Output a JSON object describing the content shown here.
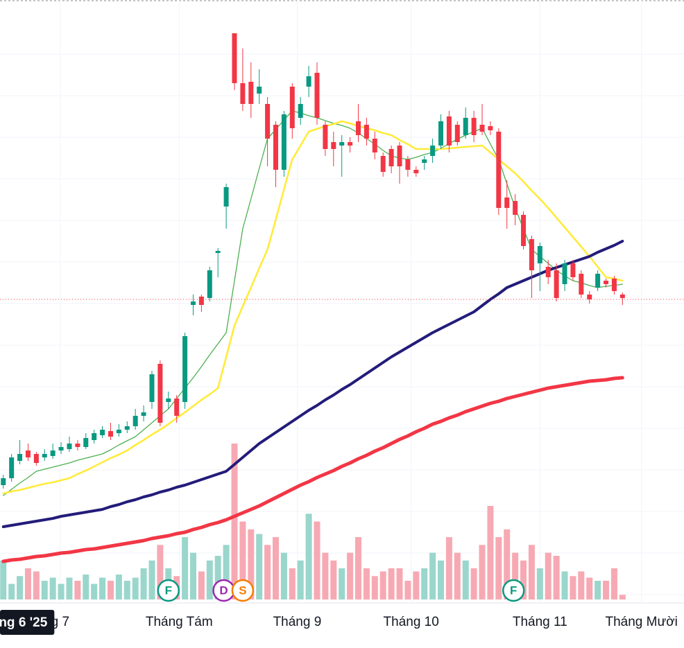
{
  "chart_data": {
    "type": "candlestick",
    "x": [
      0,
      1,
      2,
      3,
      4,
      5,
      6,
      7,
      8,
      9,
      10,
      11,
      12,
      13,
      14,
      15,
      16,
      17,
      18,
      19,
      20,
      21,
      22,
      23,
      24,
      25,
      26,
      27,
      28,
      29,
      30,
      31,
      32,
      33,
      34,
      35,
      36,
      37,
      38,
      39,
      40,
      41,
      42,
      43,
      44,
      45,
      46,
      47,
      48,
      49,
      50,
      51,
      52,
      53,
      54,
      55,
      56,
      57,
      58,
      59,
      60,
      61,
      62,
      63,
      64,
      65,
      66,
      67,
      68,
      69,
      70,
      71,
      72,
      73,
      74,
      75
    ],
    "open": [
      200,
      210,
      235,
      250,
      245,
      240,
      242,
      250,
      252,
      260,
      255,
      265,
      272,
      278,
      275,
      280,
      285,
      300,
      320,
      375,
      320,
      325,
      320,
      460,
      472,
      470,
      535,
      602,
      852,
      780,
      782,
      765,
      750,
      720,
      655,
      775,
      730,
      775,
      795,
      720,
      695,
      690,
      695,
      725,
      720,
      700,
      675,
      685,
      690,
      670,
      655,
      665,
      675,
      690,
      732,
      720,
      705,
      730,
      720,
      718,
      710,
      615,
      610,
      590,
      555,
      520,
      515,
      510,
      490,
      520,
      505,
      475,
      485,
      495,
      498,
      475
    ],
    "high": [
      215,
      245,
      265,
      260,
      248,
      252,
      260,
      262,
      270,
      265,
      275,
      280,
      285,
      290,
      288,
      292,
      310,
      315,
      365,
      380,
      335,
      330,
      420,
      475,
      475,
      515,
      542,
      635,
      852,
      830,
      810,
      800,
      760,
      725,
      740,
      780,
      760,
      805,
      810,
      725,
      710,
      705,
      702,
      750,
      730,
      710,
      680,
      690,
      695,
      675,
      660,
      675,
      700,
      735,
      740,
      725,
      745,
      740,
      750,
      725,
      715,
      640,
      620,
      595,
      560,
      550,
      525,
      520,
      525,
      525,
      510,
      480,
      510,
      498,
      502,
      478
    ],
    "low": [
      195,
      205,
      230,
      235,
      228,
      235,
      238,
      245,
      248,
      250,
      252,
      260,
      268,
      265,
      270,
      275,
      280,
      292,
      310,
      285,
      310,
      290,
      310,
      445,
      450,
      465,
      500,
      570,
      770,
      740,
      730,
      750,
      660,
      630,
      645,
      700,
      720,
      760,
      720,
      675,
      660,
      645,
      680,
      695,
      690,
      670,
      645,
      650,
      635,
      645,
      645,
      655,
      665,
      685,
      680,
      690,
      700,
      695,
      705,
      705,
      590,
      570,
      575,
      540,
      470,
      480,
      490,
      465,
      480,
      495,
      470,
      462,
      480,
      485,
      475,
      460
    ],
    "close": [
      210,
      240,
      245,
      240,
      232,
      245,
      250,
      255,
      260,
      255,
      268,
      275,
      280,
      270,
      280,
      285,
      300,
      305,
      360,
      290,
      325,
      300,
      415,
      465,
      460,
      510,
      538,
      630,
      780,
      750,
      750,
      775,
      700,
      655,
      735,
      715,
      750,
      790,
      730,
      685,
      685,
      695,
      690,
      705,
      700,
      680,
      652,
      660,
      660,
      655,
      650,
      670,
      690,
      725,
      690,
      695,
      730,
      705,
      710,
      712,
      600,
      600,
      590,
      545,
      510,
      545,
      500,
      470,
      520,
      500,
      475,
      468,
      505,
      490,
      480,
      470
    ],
    "up_color": "#089981",
    "down_color": "#f23645",
    "volume": [
      25,
      10,
      15,
      20,
      18,
      12,
      14,
      10,
      14,
      12,
      16,
      10,
      14,
      12,
      16,
      12,
      14,
      20,
      25,
      35,
      20,
      15,
      40,
      30,
      18,
      25,
      28,
      35,
      100,
      50,
      45,
      42,
      35,
      40,
      30,
      20,
      25,
      55,
      50,
      30,
      25,
      20,
      30,
      40,
      20,
      15,
      18,
      20,
      20,
      12,
      18,
      20,
      30,
      25,
      40,
      30,
      25,
      20,
      35,
      60,
      40,
      45,
      30,
      25,
      35,
      20,
      30,
      28,
      18,
      15,
      18,
      14,
      12,
      12,
      20,
      3
    ],
    "volume_up_color": "#9ad6cb",
    "volume_down_color": "#f7a9b3",
    "vlim": [
      0,
      100
    ],
    "ma": [
      {
        "color": "#4caf50",
        "width": 1.3,
        "values": [
          185,
          194,
          203,
          211,
          220,
          223,
          226,
          229,
          232,
          236,
          239,
          242,
          245,
          251,
          258,
          264,
          270,
          280,
          290,
          300,
          310,
          325,
          340,
          355,
          371,
          388,
          404,
          420,
          495,
          570,
          613,
          657,
          700,
          713,
          727,
          740,
          737,
          733,
          730,
          726,
          722,
          719,
          715,
          708,
          700,
          692,
          683,
          675,
          672,
          670,
          673,
          677,
          680,
          686,
          693,
          699,
          705,
          710,
          715,
          692,
          670,
          635,
          600,
          570,
          540,
          530,
          520,
          510,
          502,
          495,
          492,
          488,
          485,
          487,
          488,
          490
        ]
      },
      {
        "color": "#ffeb3b",
        "width": 2.6,
        "values": [
          188,
          191,
          193,
          196,
          199,
          202,
          204,
          207,
          210,
          216,
          221,
          227,
          233,
          239,
          244,
          250,
          258,
          265,
          273,
          280,
          288,
          297,
          305,
          314,
          323,
          331,
          340,
          385,
          430,
          458,
          485,
          513,
          540,
          583,
          627,
          670,
          690,
          710,
          714,
          718,
          721,
          725,
          722,
          718,
          715,
          712,
          708,
          705,
          698,
          692,
          685,
          685,
          685,
          685,
          686,
          687,
          688,
          689,
          690,
          680,
          670,
          660,
          650,
          638,
          625,
          613,
          600,
          586,
          572,
          558,
          544,
          530,
          515,
          500,
          498,
          495
        ]
      },
      {
        "color": "#231c7a",
        "width": 4,
        "values": [
          140,
          142,
          144,
          146,
          148,
          150,
          152,
          155,
          157,
          159,
          161,
          163,
          165,
          169,
          172,
          176,
          179,
          183,
          186,
          190,
          193,
          197,
          200,
          204,
          208,
          212,
          216,
          220,
          230,
          240,
          250,
          260,
          268,
          276,
          284,
          292,
          300,
          308,
          315,
          323,
          330,
          338,
          345,
          353,
          361,
          369,
          377,
          385,
          392,
          399,
          406,
          413,
          420,
          426,
          432,
          438,
          444,
          450,
          459,
          468,
          476,
          485,
          490,
          495,
          500,
          505,
          510,
          514,
          518,
          522,
          526,
          530,
          536,
          541,
          546,
          552
        ]
      },
      {
        "color": "#f23645",
        "width": 5,
        "values": [
          90,
          92,
          93,
          95,
          97,
          98,
          100,
          102,
          103,
          105,
          107,
          108,
          110,
          112,
          114,
          116,
          118,
          120,
          123,
          125,
          127,
          130,
          132,
          136,
          139,
          143,
          146,
          150,
          155,
          160,
          165,
          170,
          176,
          182,
          188,
          194,
          200,
          205,
          211,
          216,
          221,
          227,
          232,
          238,
          243,
          249,
          254,
          260,
          266,
          271,
          277,
          282,
          288,
          292,
          297,
          301,
          306,
          310,
          314,
          318,
          321,
          325,
          328,
          331,
          334,
          337,
          340,
          342,
          344,
          346,
          348,
          350,
          351,
          352,
          354,
          355
        ]
      }
    ],
    "price_line": 468,
    "ylim": [
      0,
      900
    ],
    "xlim": [
      -0.4,
      82.45
    ],
    "gridlines": [
      822,
      762,
      702,
      642,
      582,
      522,
      462,
      402,
      342,
      282,
      222,
      162,
      102,
      42
    ],
    "grid": true,
    "xticks": [
      {
        "value": 6.9,
        "label": "g 7"
      },
      {
        "value": 21.3,
        "label": "Tháng Tám"
      },
      {
        "value": 35.6,
        "label": "Tháng 9"
      },
      {
        "value": 49.4,
        "label": "Tháng 10"
      },
      {
        "value": 65,
        "label": "Tháng 11"
      },
      {
        "value": 77.3,
        "label": "Tháng Mười"
      }
    ],
    "cursor_label": {
      "value": 2.4,
      "label": "ng 6 '25"
    },
    "events": [
      {
        "x": 20,
        "label": "F",
        "color": "#089981"
      },
      {
        "x": 26.7,
        "label": "D",
        "color": "#9c27b0"
      },
      {
        "x": 29,
        "label": "S",
        "color": "#f57c00"
      },
      {
        "x": 61.8,
        "label": "F",
        "color": "#089981"
      }
    ]
  }
}
